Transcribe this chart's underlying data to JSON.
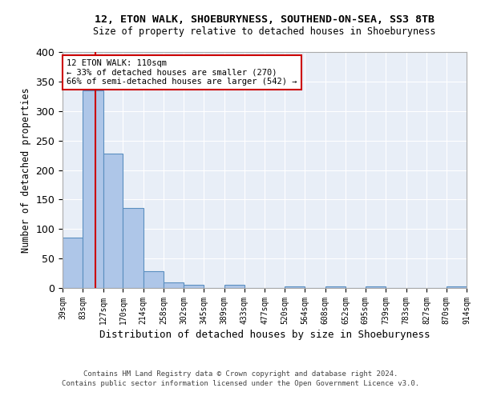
{
  "title1": "12, ETON WALK, SHOEBURYNESS, SOUTHEND-ON-SEA, SS3 8TB",
  "title2": "Size of property relative to detached houses in Shoeburyness",
  "xlabel": "Distribution of detached houses by size in Shoeburyness",
  "ylabel": "Number of detached properties",
  "annotation_line1": "12 ETON WALK: 110sqm",
  "annotation_line2": "← 33% of detached houses are smaller (270)",
  "annotation_line3": "66% of semi-detached houses are larger (542) →",
  "footer1": "Contains HM Land Registry data © Crown copyright and database right 2024.",
  "footer2": "Contains public sector information licensed under the Open Government Licence v3.0.",
  "property_size": 110,
  "bin_edges": [
    39,
    83,
    127,
    170,
    214,
    258,
    302,
    345,
    389,
    433,
    477,
    520,
    564,
    608,
    652,
    695,
    739,
    783,
    827,
    870,
    914
  ],
  "bar_heights": [
    85,
    335,
    228,
    136,
    28,
    10,
    5,
    0,
    5,
    0,
    0,
    3,
    0,
    3,
    0,
    3,
    0,
    0,
    0,
    3
  ],
  "bar_color": "#aec6e8",
  "bar_edge_color": "#5a8fc0",
  "vline_color": "#cc0000",
  "annotation_box_color": "#cc0000",
  "bg_color": "#e8eef7",
  "grid_color": "#ffffff",
  "ylim": [
    0,
    400
  ],
  "yticks": [
    0,
    50,
    100,
    150,
    200,
    250,
    300,
    350,
    400
  ]
}
